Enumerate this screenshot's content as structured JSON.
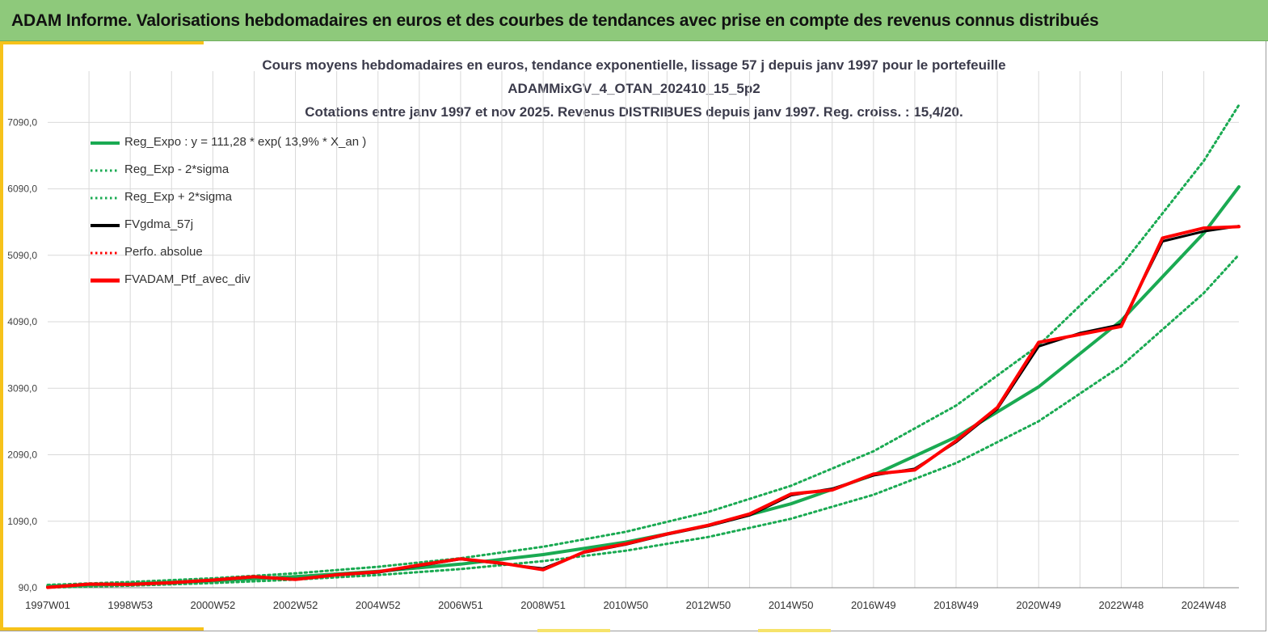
{
  "header": {
    "title": "ADAM Informe. Valorisations hebdomadaires en euros et des courbes de tendances avec prise en compte des revenus connus distribués"
  },
  "colors": {
    "header_bg": "#8ec97b",
    "accent": "#f6c21a",
    "trend_green": "#1aaa52",
    "band_green": "#1aaa52",
    "fvgdma_black": "#000000",
    "perf_red": "#ff0000",
    "grid": "#d9d9d9"
  },
  "chart_data": {
    "type": "line",
    "title": "Cours moyens hebdomadaires  en euros, tendance exponentielle, lissage 57 j depuis janv 1997 pour le portefeuille",
    "subtitle": "ADAMMixGV_4_OTAN_202410_15_5p2",
    "subtitle2": "Cotations  entre janv 1997 et nov 2025. Revenus DISTRIBUES depuis janv 1997. Reg. croiss. : 15,4/20.",
    "xlabel": "",
    "ylabel": "",
    "x_ticks": [
      "1997W01",
      "1998W53",
      "2000W52",
      "2002W52",
      "2004W52",
      "2006W51",
      "2008W51",
      "2010W50",
      "2012W50",
      "2014W50",
      "2016W49",
      "2018W49",
      "2020W49",
      "2022W48",
      "2024W48"
    ],
    "x_tick_years": [
      1997.0,
      1999.0,
      2001.0,
      2003.0,
      2005.0,
      2007.0,
      2009.0,
      2011.0,
      2013.0,
      2015.0,
      2017.0,
      2019.0,
      2021.0,
      2023.0,
      2025.0
    ],
    "x_range": [
      1997.0,
      2025.85
    ],
    "y_ticks": [
      "90,0",
      "1090,0",
      "2090,0",
      "3090,0",
      "4090,0",
      "5090,0",
      "6090,0",
      "7090,0"
    ],
    "y_tick_values": [
      90,
      1090,
      2090,
      3090,
      4090,
      5090,
      6090,
      7090
    ],
    "ylim": [
      90,
      7860
    ],
    "grid": true,
    "legend_position": "top-left",
    "trend": {
      "a": 111.28,
      "rate": 0.139
    },
    "series": [
      {
        "name": "Reg_Expo : y = 111,28 * exp( 13,9% *  X_an )",
        "style": "solid-thick",
        "color": "#1aaa52",
        "x": [
          1997.0,
          1999.0,
          2001.0,
          2003.0,
          2005.0,
          2007.0,
          2009.0,
          2011.0,
          2013.0,
          2015.0,
          2017.0,
          2019.0,
          2021.0,
          2023.0,
          2025.0,
          2025.85
        ],
        "values": [
          111,
          147,
          194,
          256,
          337,
          445,
          588,
          776,
          1024,
          1352,
          1785,
          2357,
          3112,
          4109,
          5425,
          6120
        ]
      },
      {
        "name": "Reg_Exp - 2*sigma",
        "style": "dotted",
        "color": "#1aaa52",
        "x": [
          1997.0,
          1999.0,
          2001.0,
          2003.0,
          2005.0,
          2007.0,
          2009.0,
          2011.0,
          2013.0,
          2015.0,
          2017.0,
          2019.0,
          2021.0,
          2023.0,
          2025.0,
          2025.85
        ],
        "values": [
          93,
          122,
          161,
          213,
          281,
          371,
          490,
          647,
          854,
          1127,
          1488,
          1965,
          2594,
          3425,
          4522,
          5100
        ]
      },
      {
        "name": "Reg_Exp + 2*sigma",
        "style": "dotted",
        "color": "#1aaa52",
        "x": [
          1997.0,
          1999.0,
          2001.0,
          2003.0,
          2005.0,
          2007.0,
          2009.0,
          2011.0,
          2013.0,
          2015.0,
          2017.0,
          2019.0,
          2021.0,
          2023.0,
          2025.0,
          2025.85
        ],
        "values": [
          133,
          176,
          232,
          307,
          405,
          534,
          706,
          932,
          1230,
          1623,
          2143,
          2830,
          3736,
          4932,
          6510,
          7350
        ]
      },
      {
        "name": "FVgdma_57j",
        "style": "solid",
        "color": "#000000",
        "x": [
          1997.0,
          1998.0,
          1999.0,
          2000.0,
          2001.0,
          2002.0,
          2003.0,
          2004.0,
          2005.0,
          2006.0,
          2007.0,
          2008.0,
          2009.0,
          2010.0,
          2011.0,
          2012.0,
          2013.0,
          2014.0,
          2015.0,
          2016.0,
          2017.0,
          2018.0,
          2019.0,
          2020.0,
          2021.0,
          2022.0,
          2023.0,
          2024.0,
          2025.0,
          2025.85
        ],
        "values": [
          95,
          140,
          145,
          160,
          200,
          250,
          220,
          280,
          320,
          420,
          520,
          450,
          380,
          620,
          740,
          890,
          1020,
          1180,
          1480,
          1580,
          1780,
          1880,
          2280,
          2780,
          3720,
          3920,
          4050,
          5300,
          5450,
          5530
        ]
      },
      {
        "name": "Perfo. absolue",
        "style": "dotted",
        "color": "#ff0000",
        "x": [],
        "values": []
      },
      {
        "name": "FVADAM_Ptf_avec_div",
        "style": "solid-thick",
        "color": "#ff0000",
        "x": [
          1997.0,
          1998.0,
          1999.0,
          2000.0,
          2001.0,
          2002.0,
          2003.0,
          2004.0,
          2005.0,
          2006.0,
          2007.0,
          2008.0,
          2009.0,
          2010.0,
          2011.0,
          2012.0,
          2013.0,
          2014.0,
          2015.0,
          2016.0,
          2017.0,
          2018.0,
          2019.0,
          2020.0,
          2021.0,
          2022.0,
          2023.0,
          2024.0,
          2025.0,
          2025.85
        ],
        "values": [
          95,
          145,
          140,
          165,
          205,
          255,
          215,
          285,
          330,
          430,
          525,
          460,
          360,
          630,
          750,
          900,
          1030,
          1200,
          1500,
          1560,
          1800,
          1860,
          2300,
          2800,
          3780,
          3900,
          4020,
          5350,
          5500,
          5520
        ]
      }
    ]
  }
}
